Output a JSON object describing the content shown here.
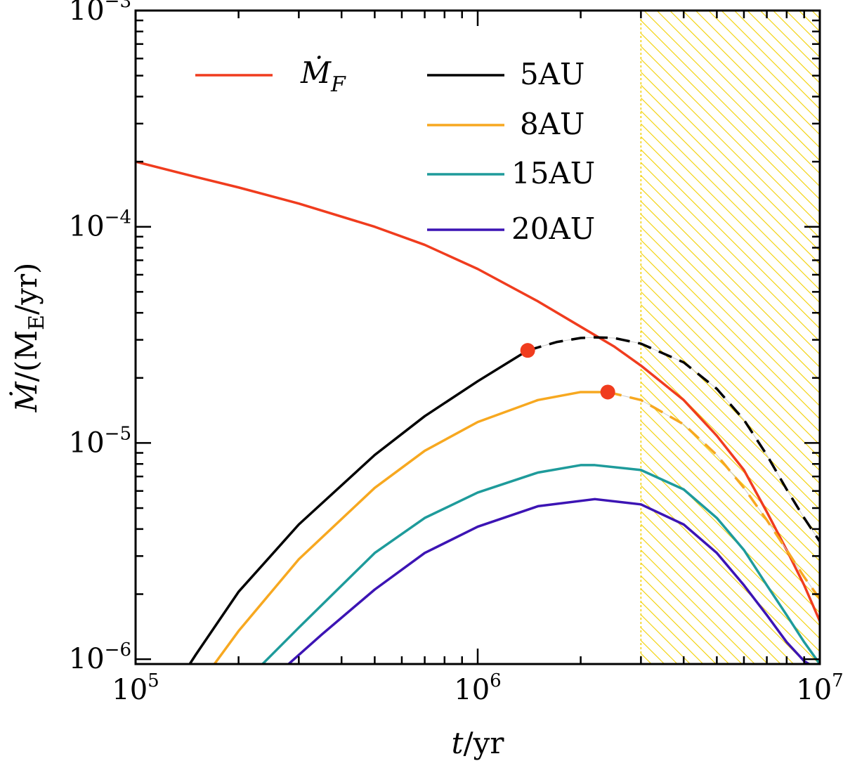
{
  "chart_data": {
    "type": "line",
    "x_scale": "log",
    "y_scale": "log",
    "xlim": [
      100000,
      10000000
    ],
    "ylim": [
      9.5e-07,
      0.001
    ],
    "x_ticks": [
      {
        "value": 100000,
        "base": "10",
        "exp": "5"
      },
      {
        "value": 1000000,
        "base": "10",
        "exp": "6"
      },
      {
        "value": 10000000,
        "base": "10",
        "exp": "7"
      }
    ],
    "y_ticks": [
      {
        "value": 0.001,
        "base": "10",
        "exp": "−3"
      },
      {
        "value": 0.0001,
        "base": "10",
        "exp": "−4"
      },
      {
        "value": 1e-05,
        "base": "10",
        "exp": "−5"
      },
      {
        "value": 1e-06,
        "base": "10",
        "exp": "−6"
      }
    ],
    "xlabel": {
      "italic": "t",
      "rest": "/yr"
    },
    "ylabel": {
      "italic": "Ṁ",
      "rest1": "/(M",
      "sub": "E",
      "rest2": "/yr)"
    },
    "shaded_region": {
      "x_start": 3000000,
      "x_end": 10000000,
      "color": "#f2d000",
      "pattern": "hatched"
    },
    "legend_position": "top",
    "series": [
      {
        "name": {
          "main": "Ṁ",
          "sub": "F"
        },
        "color": "#f03c1e",
        "style": "solid",
        "points": [
          [
            100000,
            0.0002
          ],
          [
            150000,
            0.00017
          ],
          [
            200000,
            0.000152
          ],
          [
            300000,
            0.000128
          ],
          [
            500000,
            0.0001
          ],
          [
            700000,
            8.25e-05
          ],
          [
            1000000,
            6.38e-05
          ],
          [
            1500000,
            4.52e-05
          ],
          [
            2000000,
            3.45e-05
          ],
          [
            2500000,
            2.8e-05
          ],
          [
            3000000,
            2.28e-05
          ],
          [
            4000000,
            1.58e-05
          ],
          [
            5000000,
            1.08e-05
          ],
          [
            6000000,
            7.5e-06
          ],
          [
            7000000,
            4.8e-06
          ],
          [
            8000000,
            3.2e-06
          ],
          [
            9000000,
            2.2e-06
          ],
          [
            10000000,
            1.5e-06
          ]
        ]
      },
      {
        "name": {
          "main": "5AU",
          "sub": ""
        },
        "color": "#000000",
        "style": "solid",
        "points": [
          [
            144000,
            9.5e-07
          ],
          [
            150000,
            1.05e-06
          ],
          [
            200000,
            2.05e-06
          ],
          [
            300000,
            4.2e-06
          ],
          [
            500000,
            8.8e-06
          ],
          [
            700000,
            1.33e-05
          ],
          [
            1000000,
            1.93e-05
          ],
          [
            1400000,
            2.68e-05
          ]
        ]
      },
      {
        "name": {
          "main": "",
          "sub": ""
        },
        "color": "#000000",
        "style": "dashed",
        "points": [
          [
            1400000,
            2.68e-05
          ],
          [
            1700000,
            2.93e-05
          ],
          [
            2000000,
            3.06e-05
          ],
          [
            2200000,
            3.08e-05
          ],
          [
            2500000,
            3.06e-05
          ],
          [
            3000000,
            2.88e-05
          ],
          [
            4000000,
            2.36e-05
          ],
          [
            5000000,
            1.78e-05
          ],
          [
            6000000,
            1.28e-05
          ],
          [
            7000000,
            8.8e-06
          ],
          [
            8000000,
            6.1e-06
          ],
          [
            9000000,
            4.5e-06
          ],
          [
            10000000,
            3.5e-06
          ]
        ]
      },
      {
        "name": {
          "main": "8AU",
          "sub": ""
        },
        "color": "#f7a820",
        "style": "solid",
        "points": [
          [
            170000,
            9.5e-07
          ],
          [
            200000,
            1.35e-06
          ],
          [
            300000,
            2.9e-06
          ],
          [
            500000,
            6.2e-06
          ],
          [
            700000,
            9.2e-06
          ],
          [
            1000000,
            1.25e-05
          ],
          [
            1500000,
            1.58e-05
          ],
          [
            2000000,
            1.72e-05
          ],
          [
            2400000,
            1.72e-05
          ]
        ]
      },
      {
        "name": {
          "main": "",
          "sub": ""
        },
        "color": "#f7a820",
        "style": "dashed",
        "points": [
          [
            2400000,
            1.72e-05
          ],
          [
            3000000,
            1.58e-05
          ],
          [
            4000000,
            1.22e-05
          ],
          [
            5000000,
            8.8e-06
          ],
          [
            6000000,
            6.2e-06
          ],
          [
            7000000,
            4.4e-06
          ],
          [
            8000000,
            3.2e-06
          ],
          [
            9000000,
            2.4e-06
          ],
          [
            10000000,
            1.9e-06
          ]
        ]
      },
      {
        "name": {
          "main": "15AU",
          "sub": ""
        },
        "color": "#1e9b9b",
        "style": "solid",
        "points": [
          [
            235000,
            9.5e-07
          ],
          [
            300000,
            1.4e-06
          ],
          [
            500000,
            3.1e-06
          ],
          [
            700000,
            4.5e-06
          ],
          [
            1000000,
            5.9e-06
          ],
          [
            1500000,
            7.3e-06
          ],
          [
            2000000,
            7.9e-06
          ],
          [
            2200000,
            7.9e-06
          ],
          [
            3000000,
            7.5e-06
          ],
          [
            4000000,
            6.1e-06
          ],
          [
            5000000,
            4.5e-06
          ],
          [
            6000000,
            3.2e-06
          ],
          [
            7000000,
            2.2e-06
          ],
          [
            8000000,
            1.6e-06
          ],
          [
            9000000,
            1.2e-06
          ],
          [
            10000000,
            9.5e-07
          ]
        ]
      },
      {
        "name": {
          "main": "20AU",
          "sub": ""
        },
        "color": "#3c14b4",
        "style": "solid",
        "points": [
          [
            280000,
            9.5e-07
          ],
          [
            350000,
            1.3e-06
          ],
          [
            500000,
            2.1e-06
          ],
          [
            700000,
            3.1e-06
          ],
          [
            1000000,
            4.1e-06
          ],
          [
            1500000,
            5.1e-06
          ],
          [
            2200000,
            5.5e-06
          ],
          [
            3000000,
            5.2e-06
          ],
          [
            4000000,
            4.2e-06
          ],
          [
            5000000,
            3.1e-06
          ],
          [
            6000000,
            2.2e-06
          ],
          [
            7000000,
            1.6e-06
          ],
          [
            8000000,
            1.2e-06
          ],
          [
            9000000,
            9.8e-07
          ],
          [
            9300000,
            9.5e-07
          ]
        ]
      }
    ],
    "markers": [
      {
        "x": 1400000,
        "y": 2.68e-05,
        "color": "#f03c1e"
      },
      {
        "x": 2400000,
        "y": 1.72e-05,
        "color": "#f03c1e"
      }
    ]
  }
}
